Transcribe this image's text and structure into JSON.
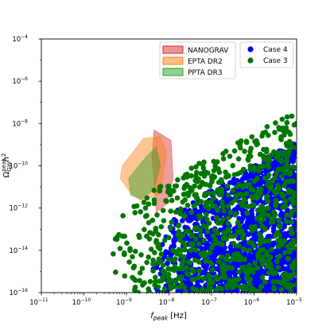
{
  "chart_data": {
    "type": "scatter",
    "title": "",
    "xlabel": "f",
    "xlabel_sub": "peak",
    "xlabel_unit": " [Hz]",
    "ylabel": "Ω",
    "ylabel_sub": "GW",
    "ylabel_sup": "peak",
    "ylabel_tail": "h",
    "ylabel_tail_sup": "2",
    "xscale": "log",
    "yscale": "log",
    "xlim_exp": [
      -11,
      -5
    ],
    "ylim_exp": [
      -16,
      -4
    ],
    "grid": false,
    "xticks": [
      {
        "base": "10",
        "exp": "−11",
        "e": -11
      },
      {
        "base": "10",
        "exp": "−10",
        "e": -10
      },
      {
        "base": "10",
        "exp": "−9",
        "e": -9
      },
      {
        "base": "10",
        "exp": "−8",
        "e": -8
      },
      {
        "base": "10",
        "exp": "−7",
        "e": -7
      },
      {
        "base": "10",
        "exp": "−6",
        "e": -6
      },
      {
        "base": "10",
        "exp": "−5",
        "e": -5
      }
    ],
    "yticks": [
      {
        "base": "10",
        "exp": "−16",
        "e": -16
      },
      {
        "base": "10",
        "exp": "−14",
        "e": -14
      },
      {
        "base": "10",
        "exp": "−12",
        "e": -12
      },
      {
        "base": "10",
        "exp": "−10",
        "e": -10
      },
      {
        "base": "10",
        "exp": "−8",
        "e": -8
      },
      {
        "base": "10",
        "exp": "−6",
        "e": -6
      },
      {
        "base": "10",
        "exp": "−4",
        "e": -4
      }
    ],
    "regions": [
      {
        "name": "NANOGRAV",
        "color": "#d62728",
        "poly": [
          [
            -8.35,
            -8.3
          ],
          [
            -7.95,
            -8.8
          ],
          [
            -7.9,
            -10.6
          ],
          [
            -8.05,
            -11.8
          ],
          [
            -8.3,
            -12.2
          ],
          [
            -8.35,
            -10.7
          ],
          [
            -8.4,
            -9.6
          ]
        ]
      },
      {
        "name": "EPTA DR2",
        "color": "#ff7f0e",
        "poly": [
          [
            -9.1,
            -10.0
          ],
          [
            -8.6,
            -8.7
          ],
          [
            -8.2,
            -8.6
          ],
          [
            -8.05,
            -9.4
          ],
          [
            -8.2,
            -11.3
          ],
          [
            -8.6,
            -11.7
          ],
          [
            -8.9,
            -11.3
          ],
          [
            -9.15,
            -10.6
          ]
        ]
      },
      {
        "name": "PPTA DR3",
        "color": "#2ca02c",
        "poly": [
          [
            -8.95,
            -10.6
          ],
          [
            -8.55,
            -9.6
          ],
          [
            -8.3,
            -9.1
          ],
          [
            -8.2,
            -10.0
          ],
          [
            -8.35,
            -11.1
          ],
          [
            -8.65,
            -11.6
          ],
          [
            -8.9,
            -11.4
          ]
        ]
      }
    ],
    "series": [
      {
        "name": "Case 4",
        "color": "#0000ff",
        "count": 1500,
        "x_range_exp": [
          -8.4,
          -5
        ],
        "y_range_exp": [
          -16,
          -8.8
        ]
      },
      {
        "name": "Case 3",
        "color": "#007700",
        "count": 780,
        "x_range_exp": [
          -9.4,
          -5
        ],
        "y_range_exp": [
          -16,
          -7.4
        ]
      }
    ],
    "legend": {
      "regions_loc": "top-center",
      "series_loc": "top-right"
    }
  }
}
